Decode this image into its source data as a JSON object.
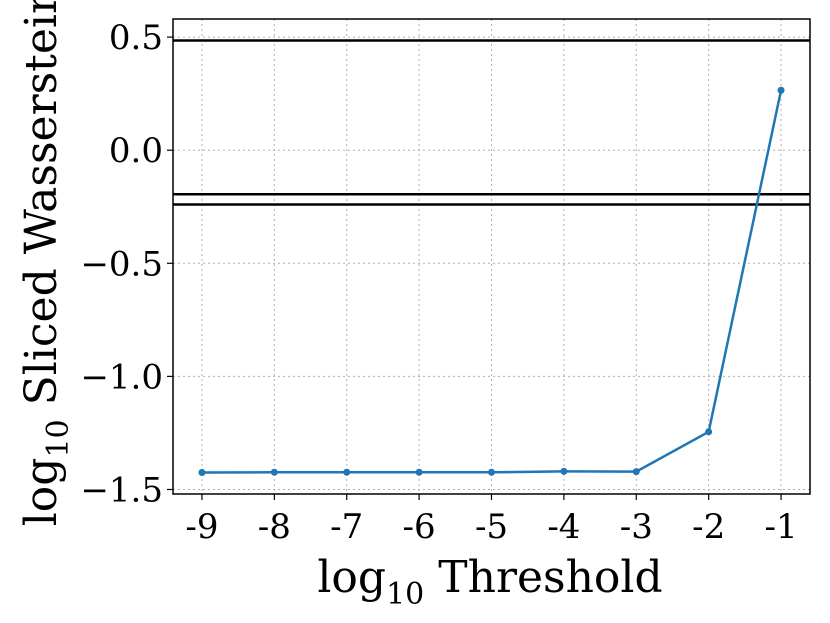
{
  "chart_data": {
    "type": "line",
    "xlabel": {
      "base": "log",
      "sub": "10",
      "rest": " Threshold"
    },
    "ylabel": {
      "base": "log",
      "sub": "10",
      "rest": " Sliced Wasserstein"
    },
    "x": [
      -9,
      -8,
      -7,
      -6,
      -5,
      -4,
      -3,
      -2,
      -1
    ],
    "x_tick_labels": [
      "-9",
      "-8",
      "-7",
      "-6",
      "-5",
      "-4",
      "-3",
      "-2",
      "-1"
    ],
    "series": [
      {
        "values": [
          -1.425,
          -1.424,
          -1.424,
          -1.424,
          -1.424,
          -1.42,
          -1.421,
          -1.245,
          0.265
        ],
        "color": "#1f77b4"
      }
    ],
    "reference_lines_y": [
      0.485,
      -0.195,
      -0.24
    ],
    "y_ticks": [
      0.5,
      0.0,
      -0.5,
      -1.0,
      -1.5
    ],
    "y_tick_labels": [
      "0.5",
      "0.0",
      "−0.5",
      "−1.0",
      "−1.5"
    ],
    "xlim": [
      -9.4,
      -0.6
    ],
    "ylim": [
      -1.52,
      0.58
    ],
    "grid": true
  }
}
